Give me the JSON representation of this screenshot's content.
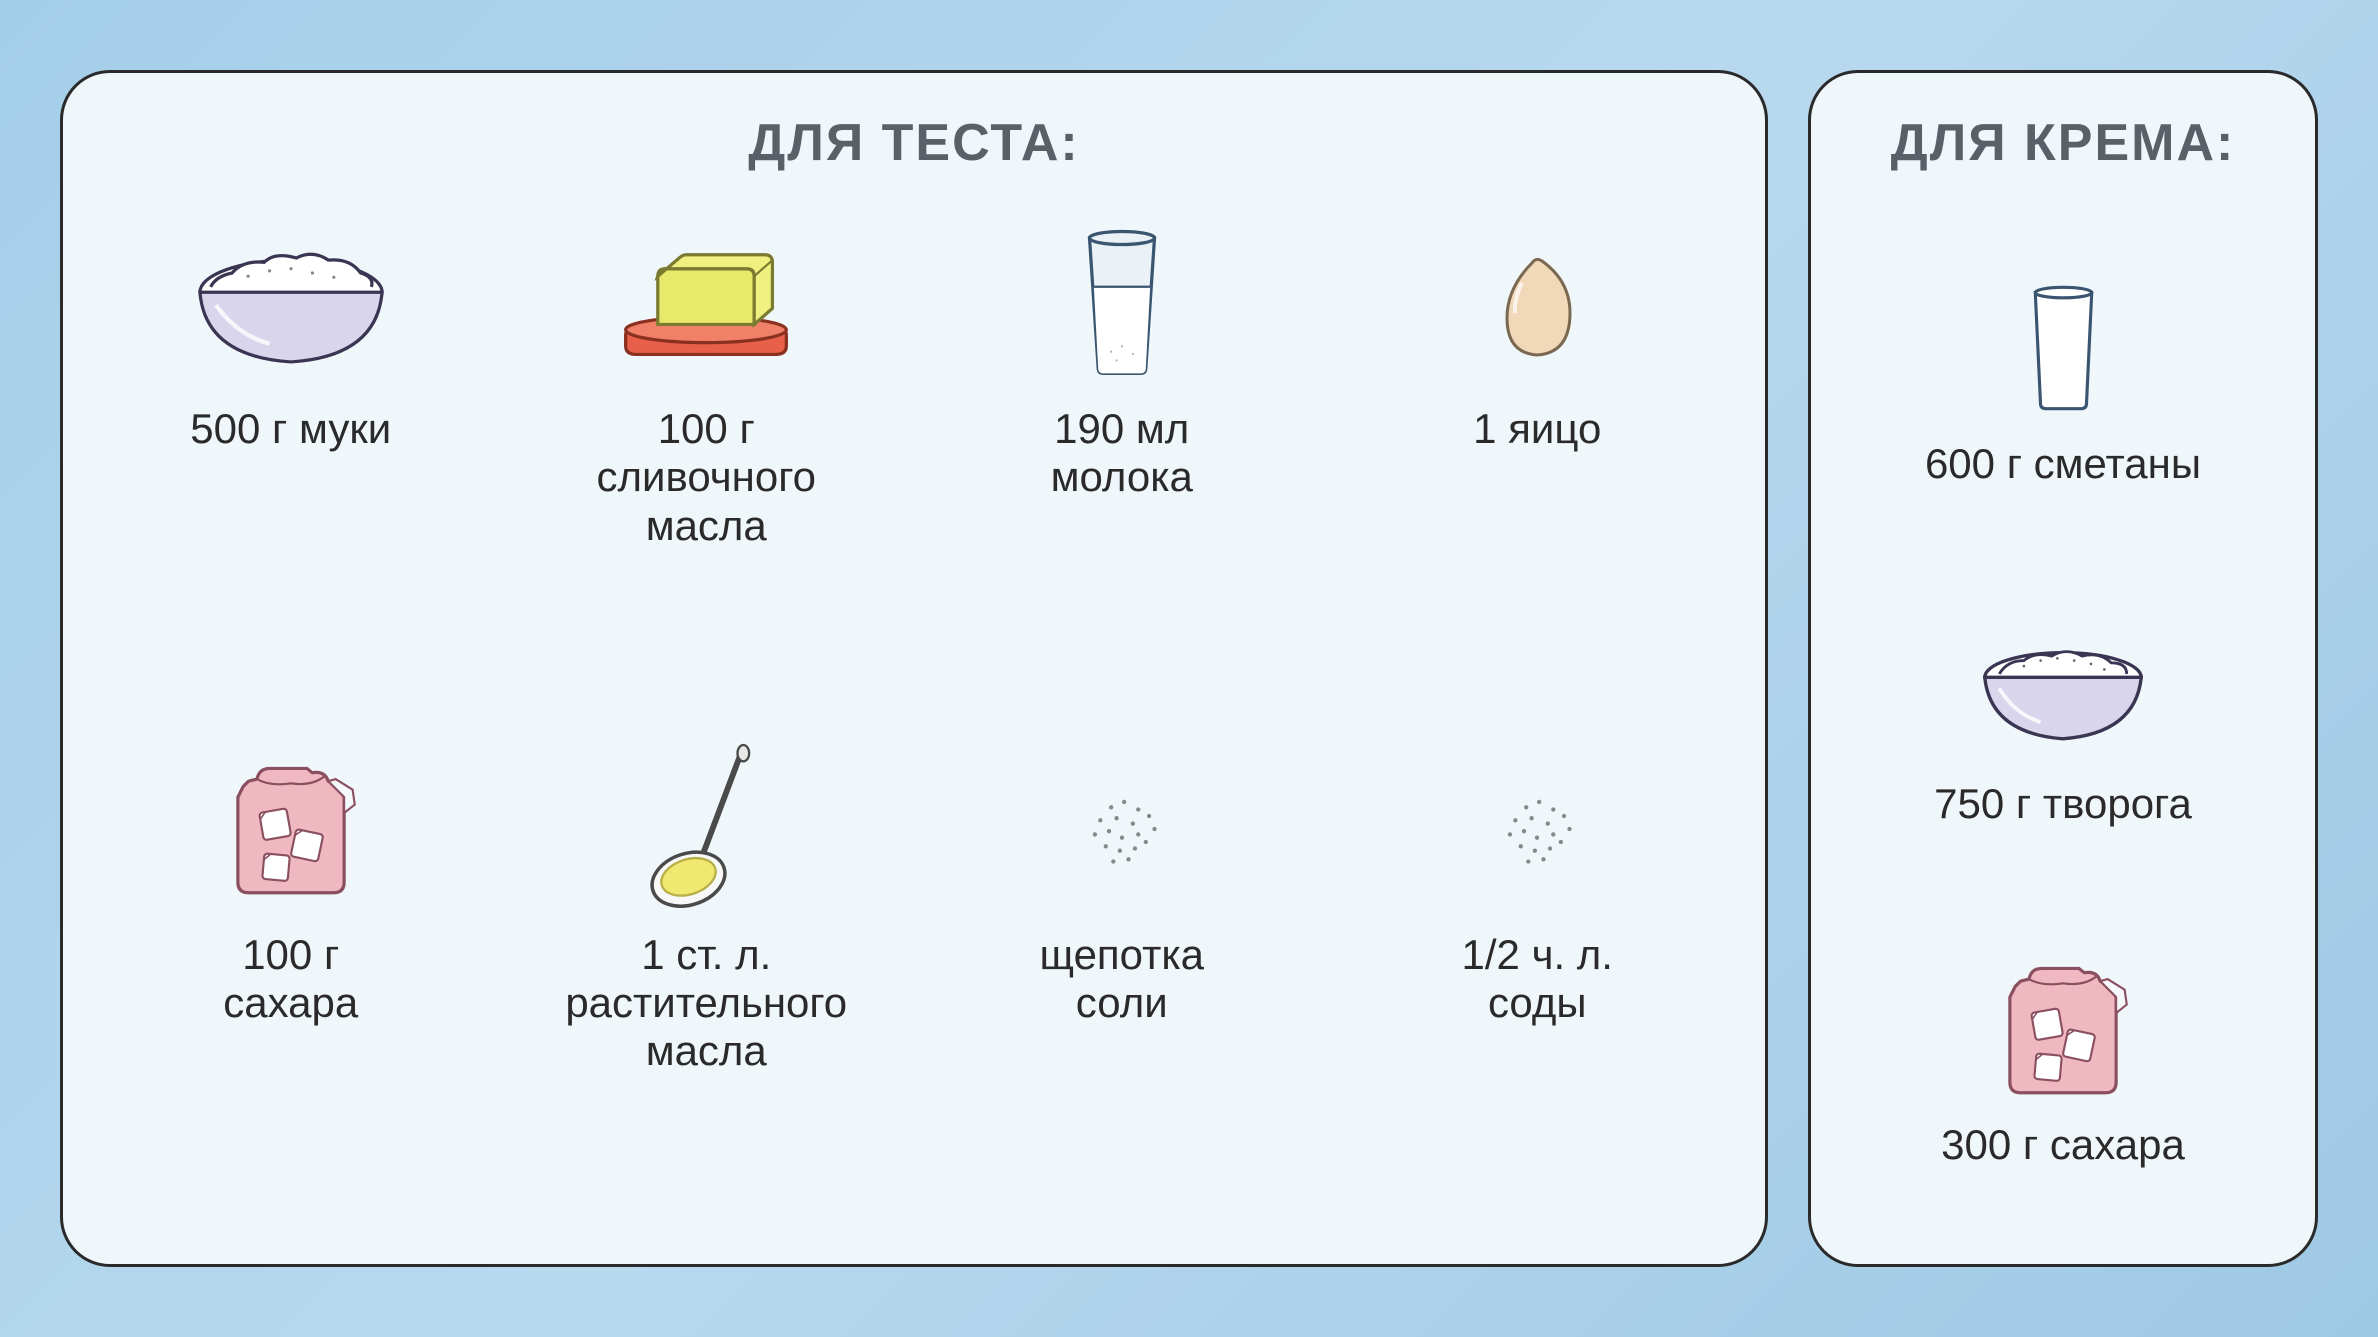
{
  "colors": {
    "panel_bg": "#f0f7fb",
    "panel_border": "#2a2a2a",
    "title_color": "#5a5f68",
    "label_color": "#2a2a2a",
    "bowl_fill": "#d8d5ec",
    "bowl_stroke": "#3a3552",
    "flour_fill": "#ffffff",
    "butter_fill": "#e8e86a",
    "butter_plate": "#e8604a",
    "glass_stroke": "#3a5570",
    "glass_fill": "#eaf2f8",
    "milk_fill": "#ffffff",
    "egg_fill": "#f0d8b8",
    "egg_stroke": "#7a6850",
    "sugar_bag": "#f0b8c0",
    "sugar_cube": "#ffffff",
    "spoon_stroke": "#4a4a4a",
    "spoon_oil": "#f0e870",
    "grain_color": "#888888"
  },
  "typography": {
    "title_fontsize": 52,
    "title_weight": 900,
    "label_fontsize": 42,
    "label_weight": 400
  },
  "layout": {
    "panel_radius": 50,
    "panel_border_width": 3,
    "dough_columns": 4,
    "dough_rows": 2
  },
  "dough": {
    "title": "ДЛЯ ТЕСТА:",
    "items": [
      {
        "icon": "flour-bowl",
        "label": "500 г муки"
      },
      {
        "icon": "butter",
        "label": "100 г\nсливочного\nмасла"
      },
      {
        "icon": "milk-glass",
        "label": "190 мл\nмолока"
      },
      {
        "icon": "egg",
        "label": "1 яицо"
      },
      {
        "icon": "sugar-bag",
        "label": "100 г\nсахара"
      },
      {
        "icon": "oil-spoon",
        "label": "1 ст. л.\nрастительного\nмасла"
      },
      {
        "icon": "salt-pinch",
        "label": "щепотка\nсоли"
      },
      {
        "icon": "soda-pinch",
        "label": "1/2 ч. л.\nсоды"
      }
    ]
  },
  "cream": {
    "title": "ДЛЯ КРЕМА:",
    "items": [
      {
        "icon": "sour-cream-glass",
        "label": "600 г сметаны"
      },
      {
        "icon": "curd-bowl",
        "label": "750 г творога"
      },
      {
        "icon": "sugar-bag",
        "label": "300 г сахара"
      }
    ]
  }
}
